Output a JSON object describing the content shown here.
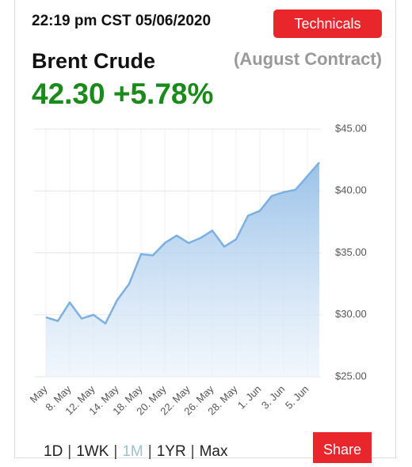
{
  "header": {
    "timestamp": "22:19 pm CST 05/06/2020",
    "button": "Technicals",
    "name": "Brent Crude",
    "contract": "(August Contract)",
    "price": "42.30",
    "change": "+5.78%"
  },
  "chart_data": {
    "type": "area",
    "categories": [
      "May",
      null,
      "8. May",
      null,
      "12. May",
      null,
      "14. May",
      null,
      "18. May",
      null,
      "20. May",
      null,
      "22. May",
      null,
      "26. May",
      null,
      "28. May",
      null,
      "1. Jun",
      null,
      "3. Jun",
      null,
      "5. Jun",
      null
    ],
    "values": [
      29.8,
      29.5,
      31.0,
      29.7,
      30.0,
      29.3,
      31.2,
      32.5,
      34.9,
      34.8,
      35.8,
      36.4,
      35.8,
      36.2,
      36.8,
      35.5,
      36.1,
      38.0,
      38.4,
      39.6,
      39.9,
      40.1,
      41.2,
      42.3
    ],
    "color": "#7cb0e0",
    "ylim": [
      25,
      45
    ],
    "yticks": [
      {
        "value": 25,
        "label": "$25.00"
      },
      {
        "value": 30,
        "label": "$30.00"
      },
      {
        "value": 35,
        "label": "$35.00"
      },
      {
        "value": 40,
        "label": "$40.00"
      },
      {
        "value": 45,
        "label": "$45.00"
      }
    ],
    "grid": true
  },
  "footer": {
    "ranges": [
      "1D",
      "1WK",
      "1M",
      "1YR",
      "Max"
    ],
    "share": "Share"
  }
}
